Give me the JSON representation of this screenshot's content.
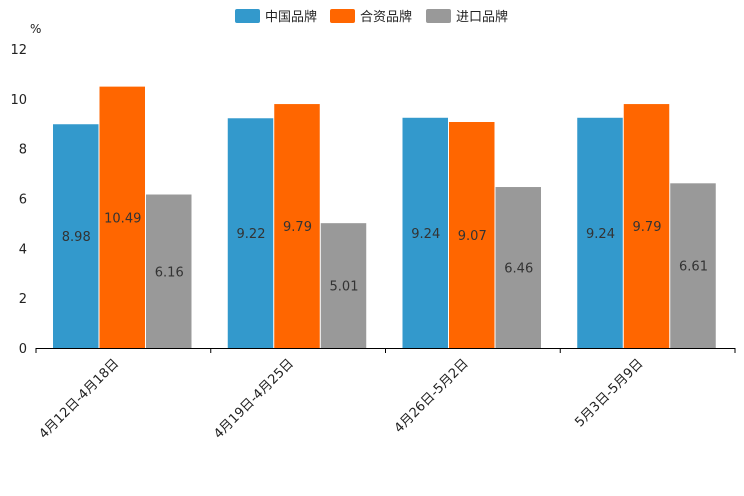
{
  "chart_data": {
    "type": "bar",
    "unit": "%",
    "categories": [
      "4月12日-4月18日",
      "4月19日-4月25日",
      "4月26日-5月2日",
      "5月3日-5月9日"
    ],
    "series": [
      {
        "name": "中国品牌",
        "color": "#3399cc",
        "values": [
          8.98,
          9.22,
          9.24,
          9.24
        ],
        "labels": [
          "8.98",
          "9.22",
          "9.24",
          "9.24"
        ]
      },
      {
        "name": "合资品牌",
        "color": "#ff6600",
        "values": [
          10.49,
          9.79,
          9.07,
          9.79
        ],
        "labels": [
          "10.49",
          "9.79",
          "9.07",
          "9.79"
        ]
      },
      {
        "name": "进口品牌",
        "color": "#999999",
        "values": [
          6.16,
          5.01,
          6.46,
          6.61
        ],
        "labels": [
          "6.16",
          "5.01",
          "6.46",
          "6.61"
        ]
      }
    ],
    "ylim": [
      0,
      12
    ],
    "yticks": [
      "0",
      "2",
      "4",
      "6",
      "8",
      "10",
      "12"
    ],
    "legend_position": "top-center",
    "grid": false
  }
}
